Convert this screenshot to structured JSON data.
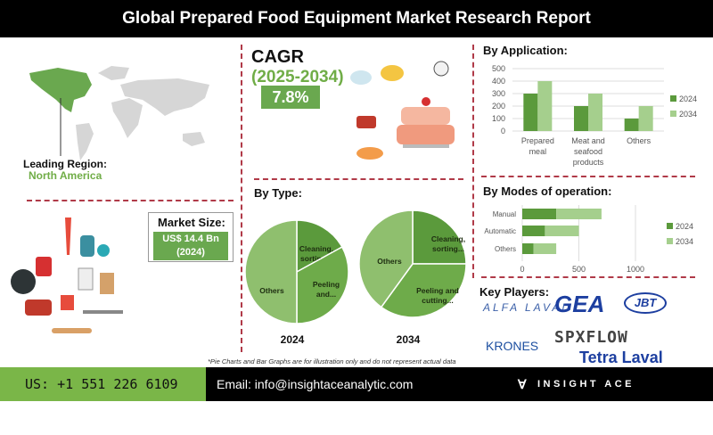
{
  "header": {
    "title": "Global Prepared Food Equipment Market Research Report"
  },
  "region": {
    "label": "Leading Region:",
    "value": "North America",
    "highlight_color": "#70ad47"
  },
  "cagr": {
    "label": "CAGR",
    "period": "(2025-2034)",
    "value": "7.8%"
  },
  "market_size": {
    "label": "Market Size:",
    "value": "US$ 14.4 Bn",
    "year": "(2024)"
  },
  "colors": {
    "series_2024": "#5b9a3c",
    "series_2034": "#a5cf8d",
    "accent_green": "#6aa84f",
    "divider": "#b03a48"
  },
  "chart_data": [
    {
      "type": "bar",
      "title": "By Application:",
      "categories": [
        "Prepared meal",
        "Meat and seafood products",
        "Others"
      ],
      "series": [
        {
          "name": "2024",
          "values": [
            300,
            200,
            100
          ]
        },
        {
          "name": "2034",
          "values": [
            400,
            300,
            200
          ]
        }
      ],
      "ylim": [
        0,
        500
      ],
      "yticks": [
        "0",
        "100",
        "200",
        "300",
        "400",
        "500"
      ],
      "grid": true,
      "legend": "right"
    },
    {
      "type": "bar",
      "orientation": "horizontal",
      "stacked": true,
      "title": "By Modes of operation:",
      "categories": [
        "Manual",
        "Automatic",
        "Others"
      ],
      "series": [
        {
          "name": "2024",
          "values": [
            300,
            200,
            100
          ]
        },
        {
          "name": "2034",
          "values": [
            400,
            300,
            200
          ]
        }
      ],
      "xlim": [
        0,
        1000
      ],
      "xticks": [
        "0",
        "500",
        "1000"
      ],
      "grid": true,
      "legend": "right"
    },
    {
      "type": "pie",
      "title": "By Type:",
      "label": "2024",
      "slices": [
        {
          "name": "Cleaning, sorting...",
          "value": 17,
          "color": "#5b9a3c"
        },
        {
          "name": "Peeling and...",
          "value": 33,
          "color": "#6eab4a"
        },
        {
          "name": "Others",
          "value": 50,
          "color": "#8fbf6e"
        }
      ]
    },
    {
      "type": "pie",
      "label": "2034",
      "slices": [
        {
          "name": "Cleaning, sorting...",
          "value": 25,
          "color": "#5b9a3c"
        },
        {
          "name": "Peeling and cutting...",
          "value": 35,
          "color": "#6eab4a"
        },
        {
          "name": "Others",
          "value": 40,
          "color": "#8fbf6e"
        }
      ]
    }
  ],
  "key_players": {
    "title": "Key Players:",
    "logos": [
      "ALFA LAVAL",
      "GEA",
      "JBT",
      "SPXFLOW",
      "KRONES",
      "Tetra Laval"
    ]
  },
  "note": "*Pie Charts and Bar Graphs are for illustration only and do not represent actual data",
  "footer": {
    "phone": "US: +1 551 226 6109",
    "email": "Email: info@insightaceanalytic.com",
    "brand": "INSIGHT ACE ANALYTIC"
  }
}
